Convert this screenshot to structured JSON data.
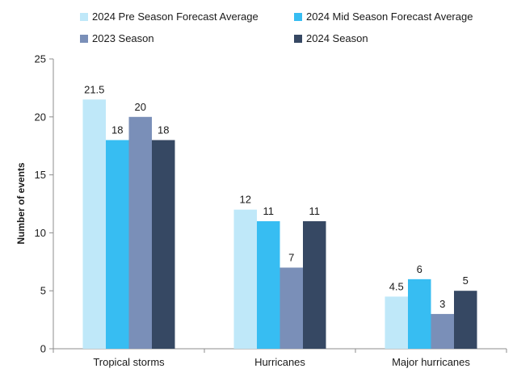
{
  "chart_data": {
    "type": "bar",
    "categories": [
      "Tropical storms",
      "Hurricanes",
      "Major hurricanes"
    ],
    "series": [
      {
        "name": "2024 Pre Season Forecast Average",
        "color": "#bfe8f9",
        "values": [
          21.5,
          12,
          4.5
        ]
      },
      {
        "name": "2024 Mid Season Forecast Average",
        "color": "#37bdf2",
        "values": [
          18,
          11,
          6
        ]
      },
      {
        "name": "2023 Season",
        "color": "#7a8fb8",
        "values": [
          20,
          7,
          3
        ]
      },
      {
        "name": "2024 Season",
        "color": "#364863",
        "values": [
          18,
          11,
          5
        ]
      }
    ],
    "ylabel": "Number of events",
    "xlabel": "",
    "ylim": [
      0,
      25
    ],
    "yticks": [
      0,
      5,
      10,
      15,
      20,
      25
    ],
    "grid": false,
    "legend_position": "top"
  }
}
